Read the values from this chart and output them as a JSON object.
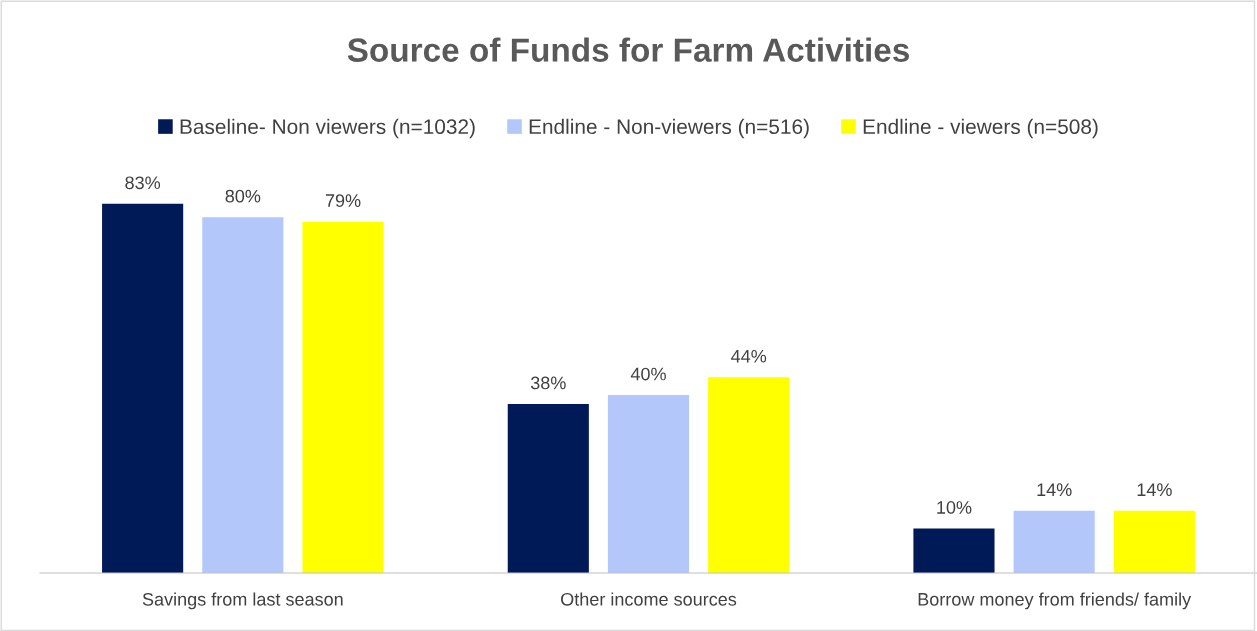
{
  "chart_data": {
    "type": "bar",
    "title": "Source of Funds for Farm Activities",
    "categories": [
      "Savings from last season",
      "Other income sources",
      "Borrow money from friends/ family"
    ],
    "series": [
      {
        "name": "Baseline- Non viewers (n=1032)",
        "color": "#001a57",
        "values": [
          83,
          38,
          10
        ],
        "value_labels": [
          "83%",
          "38%",
          "10%"
        ]
      },
      {
        "name": "Endline - Non-viewers (n=516)",
        "color": "#b4c7fa",
        "values": [
          80,
          40,
          14
        ],
        "value_labels": [
          "80%",
          "40%",
          "14%"
        ]
      },
      {
        "name": "Endline - viewers (n=508)",
        "color": "#ffff00",
        "values": [
          79,
          44,
          14
        ],
        "value_labels": [
          "79%",
          "44%",
          "14%"
        ]
      }
    ],
    "legend": "top"
  }
}
